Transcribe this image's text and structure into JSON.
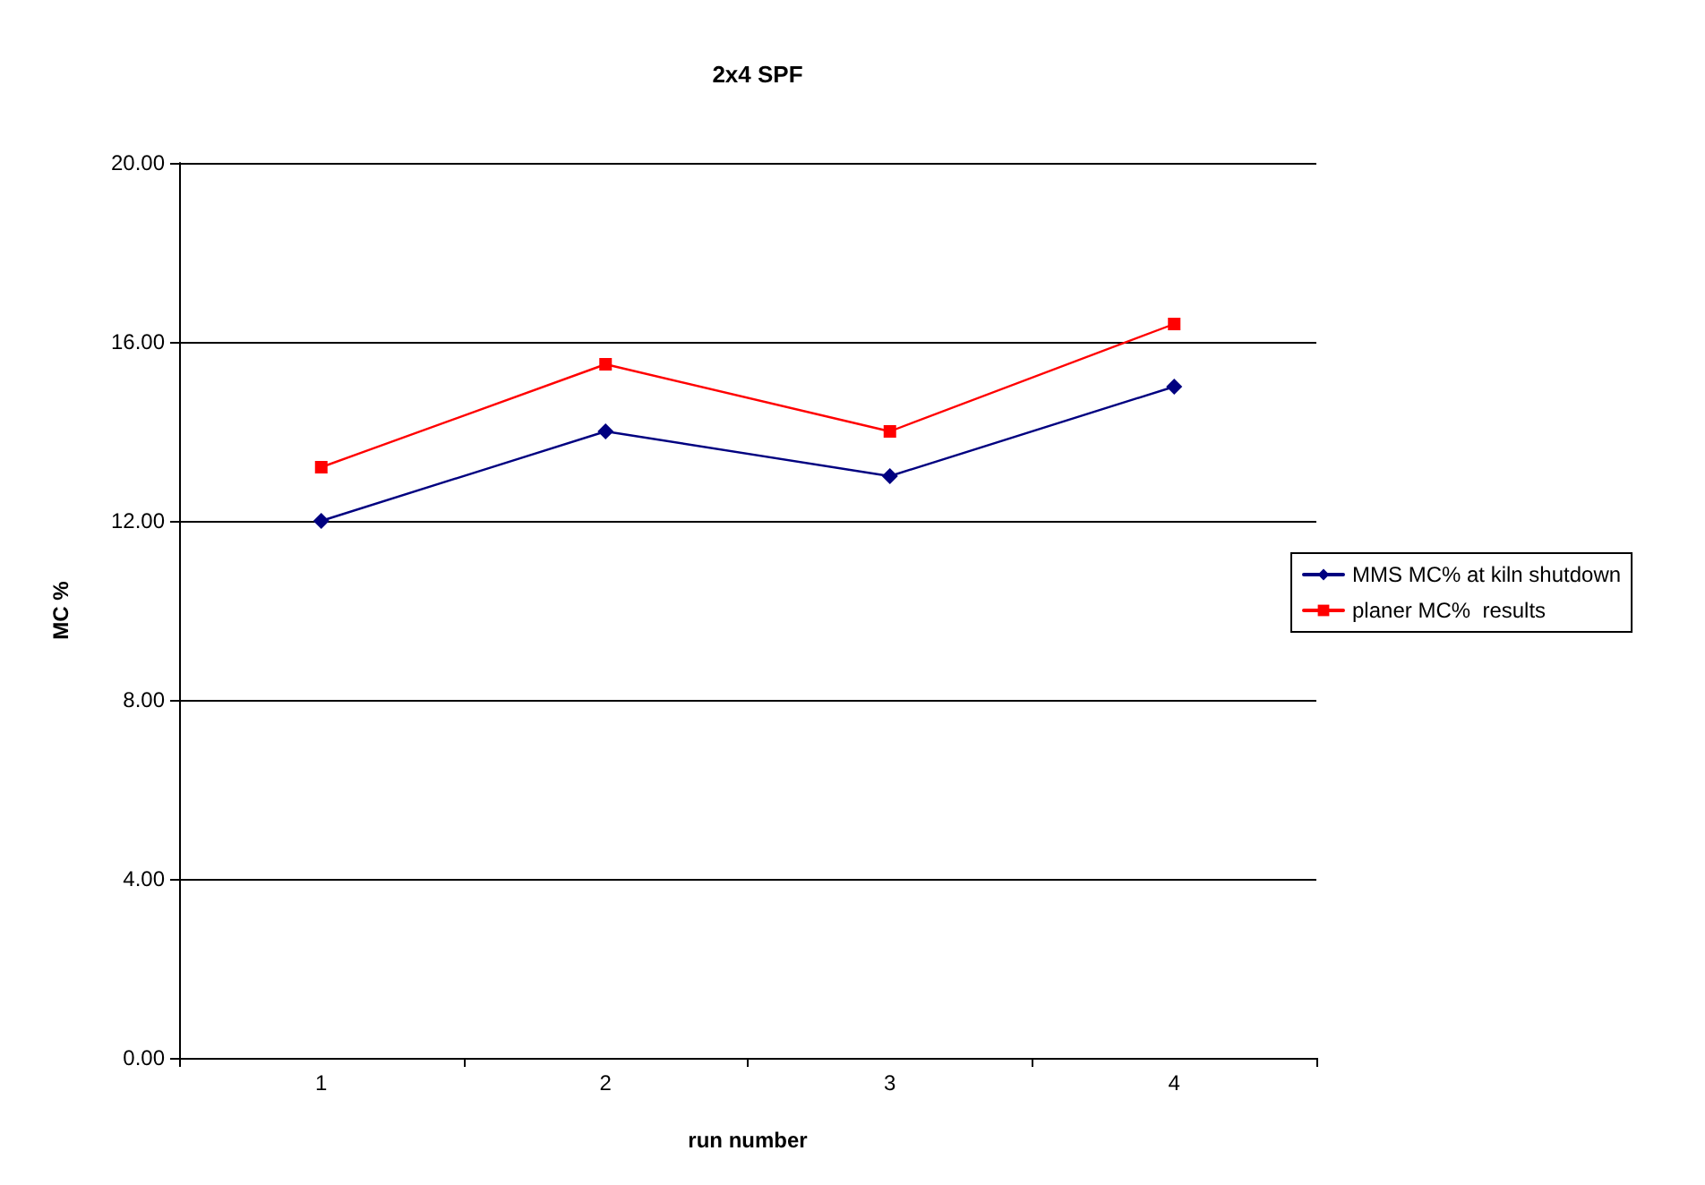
{
  "chart_data": {
    "type": "line",
    "title": "2x4 SPF",
    "xlabel": "run number",
    "ylabel": "MC %",
    "categories": [
      "1",
      "2",
      "3",
      "4"
    ],
    "series": [
      {
        "name": "MMS MC% at kiln shutdown",
        "color": "#000080",
        "marker": "diamond",
        "values": [
          12,
          14,
          13,
          15
        ]
      },
      {
        "name": "planer MC%  results",
        "color": "#ff0000",
        "marker": "square",
        "values": [
          13.2,
          15.5,
          14,
          16.4
        ]
      }
    ],
    "ylim": [
      0,
      20
    ],
    "yticks": [
      {
        "value": 0,
        "label": "0.00"
      },
      {
        "value": 4,
        "label": "4.00"
      },
      {
        "value": 8,
        "label": "8.00"
      },
      {
        "value": 12,
        "label": "12.00"
      },
      {
        "value": 16,
        "label": "16.00"
      },
      {
        "value": 20,
        "label": "20.00"
      }
    ],
    "grid": "y",
    "legend": "right"
  }
}
